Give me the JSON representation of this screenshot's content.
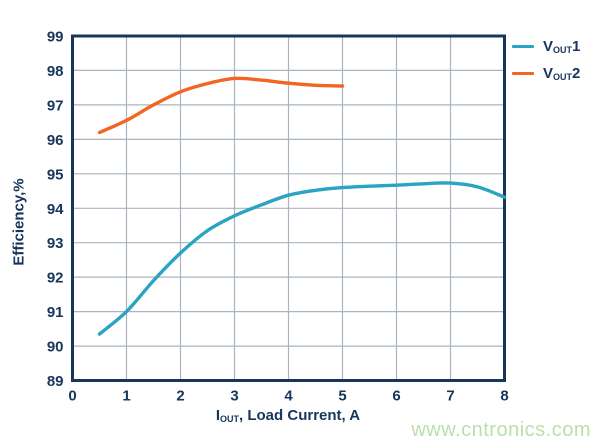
{
  "chart_data": {
    "type": "line",
    "title": "",
    "xlabel": "IOUT, Load Current, A",
    "ylabel": "Efficiency,%",
    "xlim": [
      0,
      8
    ],
    "ylim": [
      89,
      99
    ],
    "xticks": [
      0,
      1,
      2,
      3,
      4,
      5,
      6,
      7,
      8
    ],
    "yticks": [
      89,
      90,
      91,
      92,
      93,
      94,
      95,
      96,
      97,
      98,
      99
    ],
    "grid": true,
    "legend_position": "top-right-outside",
    "series": [
      {
        "name": "VOUT1",
        "color": "#2aa4c2",
        "x": [
          0.5,
          1,
          1.5,
          2,
          2.5,
          3,
          3.5,
          4,
          4.5,
          5,
          5.5,
          6,
          6.5,
          7,
          7.5,
          8
        ],
        "y": [
          90.35,
          91.0,
          91.9,
          92.7,
          93.35,
          93.78,
          94.1,
          94.38,
          94.52,
          94.6,
          94.64,
          94.67,
          94.71,
          94.73,
          94.62,
          94.32
        ]
      },
      {
        "name": "VOUT2",
        "color": "#f26522",
        "x": [
          0.5,
          1,
          1.5,
          2,
          2.5,
          3,
          3.5,
          4,
          4.5,
          5
        ],
        "y": [
          96.2,
          96.55,
          97.0,
          97.38,
          97.62,
          97.77,
          97.72,
          97.63,
          97.57,
          97.55
        ]
      }
    ]
  },
  "axes": {
    "x_title": {
      "prefix": "I",
      "sub": "OUT",
      "rest": ", Load Current, A"
    },
    "y_title": "Efficiency,%"
  },
  "legend": {
    "items": [
      {
        "prefix": "V",
        "sub": "OUT",
        "suffix": "1",
        "color": "#2aa4c2"
      },
      {
        "prefix": "V",
        "sub": "OUT",
        "suffix": "2",
        "color": "#f26522"
      }
    ]
  },
  "watermark": "www.cntronics.com",
  "colors": {
    "axis": "#17365c",
    "grid": "#a9b4c0",
    "background": "#ffffff",
    "tick_label": "#17365c",
    "watermark": "#b9dfab"
  }
}
